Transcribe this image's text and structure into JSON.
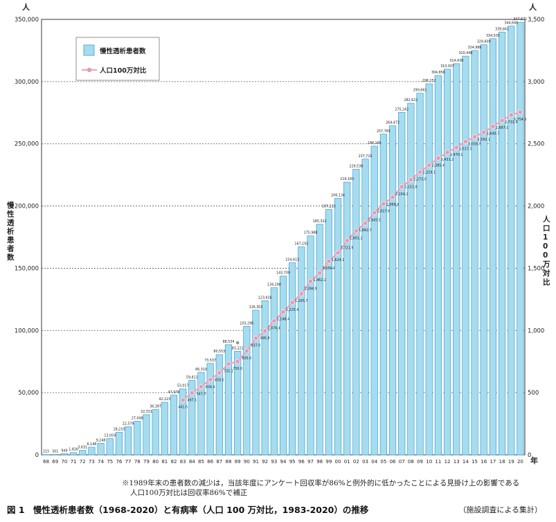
{
  "chart_data": {
    "type": "bar+line",
    "left_unit": "人",
    "right_unit": "人",
    "x_unit": "年",
    "left_ylabel": "慢性透析患者数",
    "right_ylabel": "人口100万対比",
    "left_ylim": [
      0,
      350000
    ],
    "right_ylim": [
      0,
      3500
    ],
    "left_ticks": [
      "0",
      "50,000",
      "100,000",
      "150,000",
      "200,000",
      "250,000",
      "300,000",
      "350,000"
    ],
    "right_ticks": [
      "0",
      "500",
      "1,000",
      "1,500",
      "2,000",
      "2,500",
      "3,000",
      "3,500"
    ],
    "legend": {
      "position": "top-left",
      "bar_label": "慢性透析患者数",
      "line_label": "人口100万対比"
    },
    "categories": [
      "68",
      "69",
      "70",
      "71",
      "72",
      "73",
      "74",
      "75",
      "76",
      "77",
      "78",
      "79",
      "80",
      "81",
      "82",
      "83",
      "84",
      "85",
      "86",
      "87",
      "88",
      "89",
      "90",
      "91",
      "92",
      "93",
      "94",
      "95",
      "96",
      "97",
      "98",
      "99",
      "00",
      "01",
      "02",
      "03",
      "04",
      "05",
      "06",
      "07",
      "08",
      "09",
      "10",
      "11",
      "12",
      "13",
      "14",
      "15",
      "16",
      "17",
      "18",
      "19",
      "20"
    ],
    "bar_values": [
      215,
      301,
      949,
      1826,
      3631,
      6148,
      9248,
      13059,
      18210,
      22579,
      27048,
      32331,
      36397,
      42223,
      47978,
      53017,
      59811,
      66310,
      73537,
      80553,
      88534,
      83221,
      103296,
      116303,
      123926,
      134298,
      143709,
      154413,
      167192,
      175988,
      185322,
      197213,
      206134,
      219183,
      229538,
      237710,
      248166,
      257765,
      264473,
      275242,
      282622,
      290661,
      298252,
      304856,
      310007,
      314438,
      320448,
      324986,
      329609,
      334505,
      339841,
      344640,
      347671
    ],
    "bar_labels": [
      "215",
      "301",
      "949",
      "1,826",
      "3,631",
      "6,148",
      "9,248",
      "13,059",
      "18,210",
      "22,579",
      "27,048",
      "32,331",
      "36,397",
      "42,223",
      "47,978",
      "53,017",
      "59,811",
      "66,310",
      "73,537",
      "80,553",
      "88,534",
      "83,221",
      "103,296",
      "116,303",
      "123,926",
      "134,298",
      "143,709",
      "154,413",
      "167,192",
      "175,988",
      "185,322",
      "197,213",
      "206,134",
      "219,183",
      "229,538",
      "237,710",
      "248,166",
      "257,765",
      "264,473",
      "275,242",
      "282,622",
      "290,661",
      "298,252",
      "304,856",
      "310,007",
      "314,438",
      "320,448",
      "324,986",
      "329,609",
      "334,505",
      "339,841",
      "344,640",
      "347,671"
    ],
    "note_marker_category": "89",
    "note_marker": "※",
    "line_categories": [
      "83",
      "84",
      "85",
      "86",
      "87",
      "88",
      "89",
      "90",
      "91",
      "92",
      "93",
      "94",
      "95",
      "96",
      "97",
      "98",
      "99",
      "00",
      "01",
      "02",
      "03",
      "04",
      "05",
      "06",
      "07",
      "08",
      "09",
      "10",
      "11",
      "12",
      "13",
      "14",
      "15",
      "16",
      "17",
      "18",
      "19",
      "20"
    ],
    "line_values": [
      441.0,
      497.5,
      547.5,
      604.4,
      659.5,
      731.1,
      750.0,
      835.0,
      937.0,
      995.8,
      1076.4,
      1148.4,
      1225.4,
      1295.7,
      1394.9,
      1462.2,
      1556.7,
      1624.1,
      1721.9,
      1801.2,
      1862.7,
      1945.5,
      2017.6,
      2069.9,
      2154.2,
      2211.8,
      2273.0,
      2329.1,
      2385.4,
      2431.2,
      2470.1,
      2517.3,
      2556.7,
      2592.1,
      2640.7,
      2687.1,
      2731.4,
      2754.5
    ],
    "line_labels": [
      "441.0",
      "497.5",
      "547.5",
      "604.4",
      "659.5",
      "731.1",
      "750.0",
      "835.0",
      "937.0",
      "995.8",
      "1,076.4",
      "1,148.4",
      "1,225.4",
      "1,295.7",
      "1,394.9",
      "1,462.2",
      "1,556.7",
      "1,624.1",
      "1,721.9",
      "1,801.2",
      "1,862.7",
      "1,945.5",
      "2,017.6",
      "2,069.9",
      "2,154.2",
      "2,211.8",
      "2,273.0",
      "2,329.1",
      "2,385.4",
      "2,431.2",
      "2,470.1",
      "2,517.3",
      "2,556.7",
      "2,592.1",
      "2,640.7",
      "2,687.1",
      "2,731.4",
      "2,754.5"
    ],
    "colors": {
      "bar_fill": "#a6dcef",
      "bar_stroke": "#3a9fd0",
      "line": "#f0a0b8",
      "marker": "#e89ab2",
      "grid": "#555555"
    }
  },
  "footnote_line1": "※1989年末の患者数の減少は，当該年度にアンケート回収率が86%と例外的に低かったことによる見掛け上の影響である",
  "footnote_line2": "人口100万対比は回収率86%で補正",
  "caption": "図 1　慢性透析患者数（1968-2020）と有病率（人口 100 万対比，1983-2020）の推移",
  "source": "（施設調査による集計）"
}
